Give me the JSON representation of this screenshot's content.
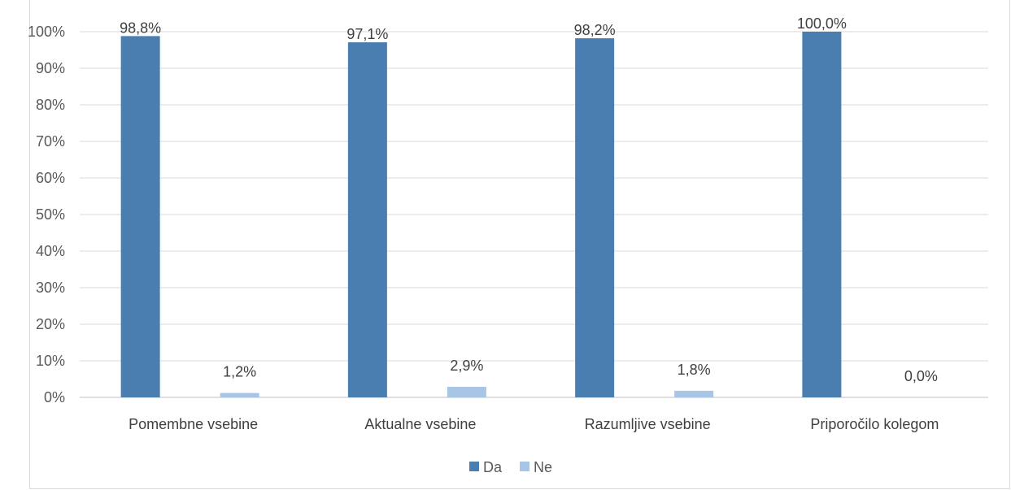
{
  "chart_data": {
    "type": "bar",
    "categories": [
      "Pomembne vsebine",
      "Aktualne vsebine",
      "Razumljive vsebine",
      "Priporočilo kolegom"
    ],
    "series": [
      {
        "name": "Da",
        "values": [
          98.8,
          97.1,
          98.2,
          100.0
        ],
        "labels": [
          "98,8%",
          "97,1%",
          "98,2%",
          "100,0%"
        ],
        "color": "#4a7eb0"
      },
      {
        "name": "Ne",
        "values": [
          1.2,
          2.9,
          1.8,
          0.0
        ],
        "labels": [
          "1,2%",
          "2,9%",
          "1,8%",
          "0,0%"
        ],
        "color": "#a9c5e6"
      }
    ],
    "y_ticks": [
      "0%",
      "10%",
      "20%",
      "30%",
      "40%",
      "50%",
      "60%",
      "70%",
      "80%",
      "90%",
      "100%"
    ],
    "ylim": [
      0,
      100
    ],
    "grid": true,
    "legend_position": "bottom"
  }
}
